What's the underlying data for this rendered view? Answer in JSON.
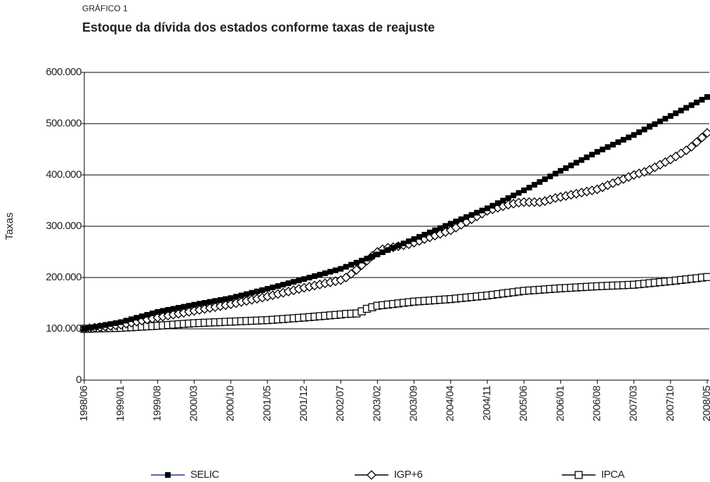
{
  "chart_data": {
    "type": "line",
    "label": "GRÁFICO 1",
    "title": "Estoque da dívida dos estados conforme taxas de reajuste",
    "y_label": "Taxas",
    "categories": [
      "1998/06",
      null,
      null,
      null,
      null,
      null,
      null,
      "1999/01",
      null,
      null,
      null,
      null,
      null,
      null,
      "1999/08",
      null,
      null,
      null,
      null,
      null,
      null,
      "2000/03",
      null,
      null,
      null,
      null,
      null,
      null,
      "2000/10",
      null,
      null,
      null,
      null,
      null,
      null,
      "2001/05",
      null,
      null,
      null,
      null,
      null,
      null,
      "2001/12",
      null,
      null,
      null,
      null,
      null,
      null,
      "2002/07",
      null,
      null,
      null,
      null,
      null,
      null,
      "2003/02",
      null,
      null,
      null,
      null,
      null,
      null,
      "2003/09",
      null,
      null,
      null,
      null,
      null,
      null,
      "2004/04",
      null,
      null,
      null,
      null,
      null,
      null,
      "2004/11",
      null,
      null,
      null,
      null,
      null,
      null,
      "2005/06",
      null,
      null,
      null,
      null,
      null,
      null,
      "2006/01",
      null,
      null,
      null,
      null,
      null,
      null,
      "2006/08",
      null,
      null,
      null,
      null,
      null,
      null,
      "2007/03",
      null,
      null,
      null,
      null,
      null,
      null,
      "2007/10",
      null,
      null,
      null,
      null,
      null,
      null,
      "2008/05"
    ],
    "series": [
      {
        "name": "SELIC",
        "color": "#000000",
        "marker": "square-filled",
        "legend_color": "#1f3a93",
        "values": [
          100000,
          101900,
          103700,
          105600,
          107400,
          109300,
          111100,
          113000,
          115900,
          118700,
          121600,
          124400,
          127300,
          130100,
          133000,
          135000,
          137000,
          139000,
          141000,
          143000,
          145000,
          147000,
          148900,
          150700,
          152600,
          154400,
          156300,
          158100,
          160000,
          162600,
          165100,
          167700,
          170300,
          172900,
          175400,
          178000,
          180700,
          183400,
          186100,
          188900,
          191600,
          194300,
          197000,
          199900,
          202700,
          205600,
          208400,
          211300,
          214100,
          217000,
          221000,
          225000,
          229000,
          233000,
          237000,
          241000,
          245000,
          249300,
          253600,
          257900,
          262100,
          266400,
          270700,
          275000,
          279300,
          283600,
          287900,
          292100,
          296400,
          300700,
          305000,
          309300,
          313600,
          317900,
          322100,
          326400,
          330700,
          335000,
          340000,
          345000,
          350000,
          355000,
          360000,
          365000,
          370000,
          375400,
          380900,
          386300,
          391700,
          397100,
          402600,
          408000,
          413300,
          418600,
          423900,
          429100,
          434400,
          439700,
          445000,
          449700,
          454400,
          459100,
          463900,
          468600,
          473300,
          478000,
          483300,
          488600,
          493900,
          499100,
          504400,
          509700,
          515000,
          520300,
          525600,
          530900,
          536100,
          541400,
          546700,
          552000
        ]
      },
      {
        "name": "IGP+6",
        "color": "#000000",
        "marker": "diamond-open",
        "legend_color": "#000000",
        "values": [
          100000,
          101100,
          102300,
          103400,
          104600,
          105700,
          106900,
          108000,
          110000,
          112000,
          114000,
          116000,
          118000,
          120000,
          122000,
          123900,
          125700,
          127600,
          129400,
          131300,
          133100,
          135000,
          136900,
          138700,
          140600,
          142400,
          144300,
          146100,
          148000,
          150100,
          152300,
          154400,
          156600,
          158700,
          160900,
          163000,
          165400,
          167900,
          170300,
          172700,
          175100,
          177600,
          180000,
          182100,
          184300,
          186400,
          188600,
          190700,
          192900,
          195000,
          200000,
          207000,
          215000,
          224000,
          233000,
          242000,
          250000,
          255000,
          258000,
          259000,
          261000,
          263000,
          265000,
          268000,
          271400,
          274900,
          278300,
          281700,
          285100,
          288600,
          292000,
          297400,
          302900,
          308300,
          313700,
          319100,
          324600,
          330000,
          333000,
          336000,
          339000,
          342000,
          344000,
          346000,
          347000,
          347000,
          347000,
          347000,
          349000,
          352000,
          355000,
          357000,
          359100,
          361300,
          363400,
          365600,
          367700,
          369900,
          372000,
          376000,
          380000,
          384000,
          388000,
          392000,
          396000,
          400000,
          403000,
          406000,
          410000,
          415000,
          420000,
          425000,
          430000,
          436000,
          442000,
          448000,
          455000,
          464000,
          473000,
          482000
        ]
      },
      {
        "name": "IPCA",
        "color": "#000000",
        "marker": "square-open",
        "legend_color": "#000000",
        "values": [
          100000,
          100300,
          100600,
          100900,
          101100,
          101400,
          101700,
          102000,
          102600,
          103100,
          103700,
          104300,
          104900,
          105400,
          106000,
          106700,
          107400,
          108100,
          108900,
          109600,
          110300,
          111000,
          111400,
          111900,
          112300,
          112700,
          113100,
          113600,
          114000,
          114400,
          114900,
          115300,
          115700,
          116100,
          116600,
          117000,
          117700,
          118400,
          119100,
          119900,
          120600,
          121300,
          122000,
          122900,
          123700,
          124600,
          125400,
          126300,
          127100,
          128000,
          129000,
          129500,
          130000,
          134000,
          139000,
          142000,
          145000,
          146100,
          147300,
          148400,
          149600,
          150700,
          151900,
          153000,
          153700,
          154400,
          155100,
          155900,
          156600,
          157300,
          158000,
          159000,
          160000,
          161000,
          162000,
          163000,
          164000,
          165000,
          166300,
          167600,
          168900,
          170100,
          171400,
          172700,
          174000,
          174700,
          175400,
          176100,
          176900,
          177600,
          178300,
          179000,
          179600,
          180100,
          180700,
          181300,
          181900,
          182400,
          183000,
          183400,
          183900,
          184300,
          184700,
          185100,
          185600,
          186000,
          187000,
          188000,
          189000,
          190000,
          191000,
          192000,
          193000,
          194100,
          195300,
          196400,
          197600,
          198700,
          199900,
          201000
        ]
      }
    ],
    "ylim": [
      0,
      600000
    ],
    "yticks": [
      0,
      {
        "value": 100000,
        "label": "100.000"
      },
      {
        "value": 200000,
        "label": "200.000"
      },
      {
        "value": 300000,
        "label": "300.000"
      },
      {
        "value": 400000,
        "label": "400.000"
      },
      {
        "value": 500000,
        "label": "500.000"
      },
      {
        "value": 600000,
        "label": "600.000"
      }
    ],
    "grid": true,
    "legend": "bottom"
  }
}
